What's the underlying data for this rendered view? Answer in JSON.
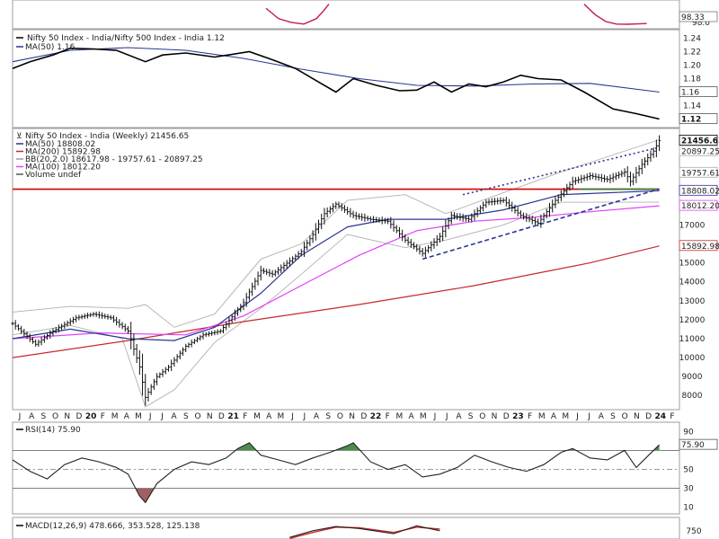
{
  "chart_data": [
    {
      "type": "line",
      "panel": "top-partial",
      "y_ticks": [
        98.0
      ],
      "y_tick_labels": [
        "98.0"
      ],
      "last_value_label": "98.33",
      "series": [
        {
          "values": [
            102,
            99.5,
            98.6,
            98.2,
            99.5,
            101.5,
            103
          ],
          "color": "#c2185b"
        },
        {
          "values": [
            103,
            100.5,
            98.8,
            98.2,
            98.15,
            98.25,
            98.33
          ],
          "color": "#c2185b"
        }
      ]
    },
    {
      "type": "line",
      "panel": "ratio",
      "title": "Nifty 50 Index - India/Nifty 500 Index - India 1.12",
      "legend": [
        {
          "text": "MA(50) 1.16",
          "color": "#283593"
        }
      ],
      "y_ticks": [
        1.14,
        1.18,
        1.2,
        1.22,
        1.24
      ],
      "y_tick_labels": [
        "1.14",
        "1.18",
        "1.20",
        "1.22",
        "1.24"
      ],
      "ylim": [
        1.11,
        1.25
      ],
      "value_boxes": [
        {
          "value": "1.16",
          "y": 1.16,
          "bold": false
        },
        {
          "value": "1.12",
          "y": 1.12,
          "bold": true
        }
      ],
      "series": [
        {
          "name": "Ratio",
          "color": "#000000",
          "x": [
            0,
            6,
            14,
            20,
            28,
            36,
            46,
            52,
            60,
            70,
            82,
            90,
            98,
            106,
            112,
            118,
            126,
            134,
            140,
            146,
            152,
            158,
            164,
            170,
            176,
            182,
            190,
            198,
            208,
            216,
            224
          ],
          "values": [
            1.195,
            1.205,
            1.215,
            1.225,
            1.224,
            1.222,
            1.205,
            1.215,
            1.218,
            1.212,
            1.22,
            1.208,
            1.195,
            1.175,
            1.16,
            1.18,
            1.17,
            1.162,
            1.163,
            1.175,
            1.16,
            1.172,
            1.168,
            1.175,
            1.185,
            1.18,
            1.178,
            1.16,
            1.135,
            1.128,
            1.12
          ]
        },
        {
          "name": "MA(50)",
          "color": "#283593",
          "x": [
            0,
            20,
            40,
            60,
            80,
            100,
            120,
            140,
            160,
            180,
            200,
            224
          ],
          "values": [
            1.205,
            1.222,
            1.226,
            1.222,
            1.21,
            1.194,
            1.18,
            1.17,
            1.169,
            1.172,
            1.173,
            1.16
          ]
        }
      ]
    },
    {
      "type": "candlestick",
      "panel": "price",
      "title": "Nifty 50 Index - India (Weekly) 21456.65",
      "legend": [
        {
          "text": "MA(50) 18808.02",
          "color": "#283593"
        },
        {
          "text": "MA(200) 15892.98",
          "color": "#c62828"
        },
        {
          "text": "BB(20,2.0) 18617.98 - 19757.61 - 20897.25",
          "color": "#9e9e9e"
        },
        {
          "text": "MA(100) 18012.20",
          "color": "#e040fb"
        },
        {
          "text": "Volume undef",
          "color": "#555555"
        }
      ],
      "y_ticks": [
        8000,
        9000,
        10000,
        11000,
        12000,
        13000,
        14000,
        15000,
        17000
      ],
      "y_tick_labels": [
        "8000",
        "9000",
        "10000",
        "11000",
        "12000",
        "13000",
        "14000",
        "15000",
        "17000"
      ],
      "ylim": [
        7300,
        22000
      ],
      "value_boxes": [
        {
          "value": "21456.65",
          "y": 21456.65,
          "bold": true
        },
        {
          "value": "20897.25",
          "y": 20897.25
        },
        {
          "value": "19757.61",
          "y": 19757.61
        },
        {
          "value": "18808.02",
          "y": 18808.02
        },
        {
          "value": "18012.20",
          "y": 18012.2
        },
        {
          "value": "15892.98",
          "y": 15892.98
        }
      ],
      "x_labels": [
        "J",
        "A",
        "S",
        "O",
        "N",
        "D",
        "20",
        "F",
        "M",
        "A",
        "M",
        "J",
        "J",
        "A",
        "S",
        "O",
        "N",
        "D",
        "21",
        "F",
        "M",
        "A",
        "M",
        "J",
        "J",
        "A",
        "S",
        "O",
        "N",
        "D",
        "22",
        "F",
        "M",
        "A",
        "M",
        "J",
        "J",
        "A",
        "S",
        "O",
        "N",
        "D",
        "23",
        "F",
        "M",
        "A",
        "M",
        "J",
        "J",
        "A",
        "S",
        "O",
        "N",
        "D",
        "24",
        "F"
      ],
      "close_points": {
        "x": [
          0,
          8,
          14,
          22,
          28,
          34,
          40,
          44,
          46,
          50,
          54,
          60,
          66,
          72,
          80,
          86,
          90,
          96,
          100,
          104,
          108,
          112,
          118,
          124,
          130,
          136,
          142,
          148,
          152,
          158,
          164,
          170,
          176,
          182,
          188,
          194,
          200,
          206,
          212,
          214,
          218,
          222,
          224
        ],
        "values": [
          11800,
          10700,
          11400,
          12100,
          12300,
          12100,
          11400,
          9500,
          7900,
          9000,
          9500,
          10600,
          11200,
          11400,
          12900,
          14600,
          14400,
          15100,
          15600,
          16500,
          17600,
          18100,
          17500,
          17300,
          17200,
          16200,
          15500,
          16400,
          17500,
          17300,
          18200,
          18300,
          17500,
          17100,
          18300,
          19300,
          19600,
          19400,
          19800,
          19300,
          20200,
          20900,
          21456.65
        ]
      },
      "lines": [
        {
          "name": "BB upper",
          "color": "#b0b0b0",
          "x": [
            0,
            20,
            40,
            46,
            56,
            70,
            86,
            100,
            116,
            136,
            150,
            170,
            190,
            224
          ],
          "values": [
            12400,
            12700,
            12600,
            12800,
            11600,
            12300,
            15200,
            16000,
            18300,
            18600,
            17600,
            18700,
            19800,
            21500
          ]
        },
        {
          "name": "BB lower",
          "color": "#b0b0b0",
          "x": [
            0,
            20,
            38,
            46,
            56,
            70,
            86,
            100,
            116,
            136,
            150,
            170,
            190,
            224
          ],
          "values": [
            11200,
            11700,
            11000,
            7400,
            8300,
            10800,
            12600,
            14400,
            16500,
            15800,
            16200,
            17000,
            18200,
            18200
          ]
        },
        {
          "name": "MA(200)",
          "color": "#c62828",
          "x": [
            0,
            40,
            80,
            120,
            160,
            200,
            224
          ],
          "values": [
            10000,
            10900,
            11900,
            12800,
            13800,
            15000,
            15892.98
          ]
        },
        {
          "name": "MA(100)",
          "color": "#e040fb",
          "x": [
            0,
            30,
            60,
            80,
            100,
            120,
            140,
            160,
            180,
            200,
            224
          ],
          "values": [
            11000,
            11300,
            11200,
            12200,
            13800,
            15400,
            16700,
            17200,
            17400,
            17700,
            18012.2
          ]
        },
        {
          "name": "MA(50)",
          "color": "#283593",
          "x": [
            0,
            20,
            40,
            56,
            70,
            86,
            100,
            116,
            130,
            150,
            170,
            190,
            224
          ],
          "values": [
            11000,
            11500,
            11000,
            10900,
            11600,
            13400,
            15400,
            16900,
            17300,
            17300,
            17800,
            18600,
            18808.02
          ]
        },
        {
          "name": "Resistance",
          "color": "#d50000",
          "x": [
            0,
            224
          ],
          "values": [
            18890,
            18890
          ]
        },
        {
          "name": "Support",
          "color": "#2e7d32",
          "x": [
            196,
            224
          ],
          "values": [
            18890,
            18890
          ]
        },
        {
          "name": "Lower trendline",
          "color": "#283593",
          "dashed": true,
          "x": [
            142,
            224
          ],
          "values": [
            15200,
            18900
          ]
        },
        {
          "name": "Upper channel",
          "color": "#283593",
          "dotted": true,
          "x": [
            156,
            224
          ],
          "values": [
            18600,
            21100
          ]
        }
      ]
    },
    {
      "type": "line",
      "panel": "rsi",
      "title": "RSI(14) 75.90",
      "y_ticks": [
        90,
        70,
        50,
        30,
        10
      ],
      "y_tick_labels": [
        "90",
        "70",
        "50",
        "30",
        "10"
      ],
      "ylim": [
        5,
        95
      ],
      "value_boxes": [
        {
          "value": "75.90",
          "y": 75.9
        }
      ],
      "series": [
        {
          "name": "RSI(14)",
          "color": "#222222",
          "x": [
            0,
            6,
            12,
            18,
            24,
            30,
            36,
            40,
            44,
            46,
            50,
            56,
            62,
            68,
            74,
            78,
            82,
            86,
            92,
            98,
            104,
            110,
            116,
            118,
            124,
            130,
            136,
            142,
            148,
            154,
            160,
            166,
            172,
            178,
            184,
            190,
            194,
            200,
            206,
            212,
            216,
            220,
            224
          ],
          "values": [
            60,
            48,
            40,
            55,
            62,
            58,
            52,
            45,
            22,
            15,
            35,
            50,
            58,
            55,
            62,
            72,
            78,
            65,
            60,
            55,
            62,
            68,
            75,
            78,
            58,
            50,
            55,
            42,
            45,
            52,
            65,
            58,
            52,
            48,
            55,
            68,
            72,
            62,
            60,
            70,
            52,
            64,
            75.9
          ]
        }
      ]
    },
    {
      "type": "line",
      "panel": "macd",
      "title": "MACD(12,26,9) 478.666, 353.528, 125.138",
      "y_ticks": [
        750
      ],
      "y_tick_labels": [
        "750"
      ],
      "ylim": [
        400,
        1000
      ],
      "series": [
        {
          "name": "MACD",
          "color": "#222222",
          "x": [
            96,
            104,
            112,
            120,
            132,
            140,
            148
          ],
          "values": [
            450,
            650,
            780,
            720,
            560,
            800,
            650
          ]
        },
        {
          "name": "Signal",
          "color": "#c62828",
          "x": [
            96,
            104,
            112,
            120,
            132,
            140,
            148
          ],
          "values": [
            420,
            600,
            760,
            740,
            600,
            760,
            700
          ]
        }
      ]
    }
  ]
}
